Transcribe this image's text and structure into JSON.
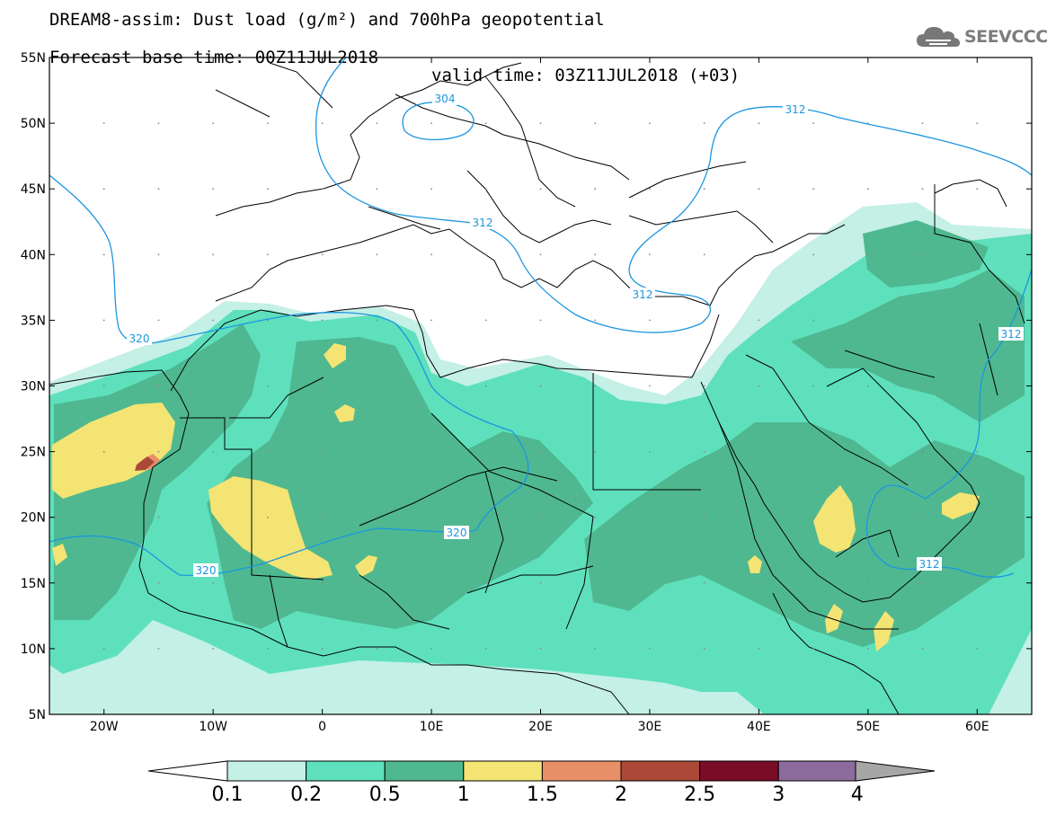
{
  "header": {
    "title_line1": "DREAM8-assim: Dust load (g/m²) and 700hPa geopotential",
    "base_time": "Forecast base time: 00Z11JUL2018",
    "valid_time": "valid time: 03Z11JUL2018 (+03)",
    "logo_text": "SEEVCCC",
    "logo_icon": "cloud-icon"
  },
  "map": {
    "lon_range": [
      -25,
      65
    ],
    "lat_range": [
      5,
      55
    ],
    "lat_labels": [
      "55N",
      "50N",
      "45N",
      "40N",
      "35N",
      "30N",
      "25N",
      "20N",
      "15N",
      "10N",
      "5N"
    ],
    "lon_labels": [
      "20W",
      "10W",
      "0",
      "10E",
      "20E",
      "30E",
      "40E",
      "50E",
      "60E"
    ],
    "contours": [
      {
        "label": "304"
      },
      {
        "label": "312"
      },
      {
        "label": "320"
      }
    ],
    "contour_color": "#1c96e0"
  },
  "colorbar": {
    "levels": [
      "0.1",
      "0.2",
      "0.5",
      "1",
      "1.5",
      "2",
      "2.5",
      "3",
      "4"
    ],
    "colors": [
      "#c4f0e6",
      "#5ee0bc",
      "#4fb890",
      "#f4e474",
      "#e88f68",
      "#ab4838",
      "#7a0c28",
      "#8c6c9c",
      "#a6a6a6"
    ]
  }
}
